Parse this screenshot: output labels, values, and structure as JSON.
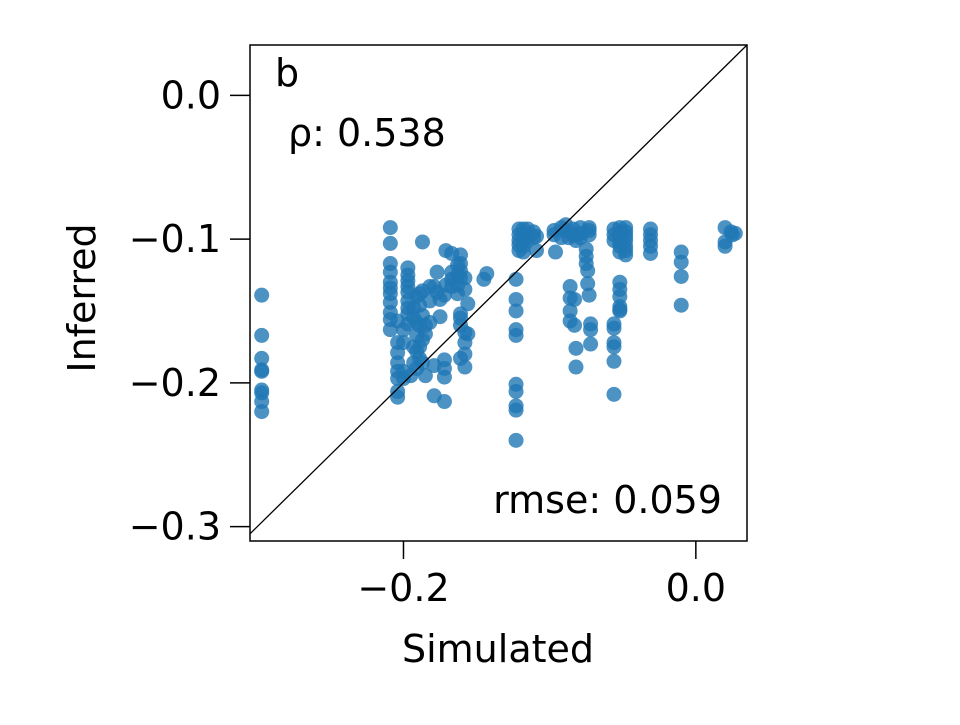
{
  "chart_data": {
    "type": "scatter",
    "panel_label": "b",
    "xlabel": "Simulated",
    "ylabel": "Inferred",
    "xlim": [
      -0.305,
      0.035
    ],
    "ylim": [
      -0.31,
      0.035
    ],
    "xticks": [
      -0.2,
      0.0
    ],
    "xtick_labels": [
      "−0.2",
      "0.0"
    ],
    "yticks": [
      0.0,
      -0.1,
      -0.2,
      -0.3
    ],
    "ytick_labels": [
      "0.0",
      "−0.1",
      "−0.2",
      "−0.3"
    ],
    "grid": false,
    "legend": "none",
    "identity_line": true,
    "point_color": "#1f77b4",
    "annotations": {
      "rho": "ρ: 0.538",
      "rmse": "rmse: 0.059"
    },
    "series": [
      {
        "points": [
          [
            -0.297,
            -0.139
          ],
          [
            -0.297,
            -0.167
          ],
          [
            -0.297,
            -0.183
          ],
          [
            -0.297,
            -0.191
          ],
          [
            -0.297,
            -0.192
          ],
          [
            -0.297,
            -0.205
          ],
          [
            -0.297,
            -0.207
          ],
          [
            -0.297,
            -0.213
          ],
          [
            -0.297,
            -0.22
          ],
          [
            -0.209,
            -0.092
          ],
          [
            -0.209,
            -0.103
          ],
          [
            -0.209,
            -0.117
          ],
          [
            -0.209,
            -0.123
          ],
          [
            -0.209,
            -0.13
          ],
          [
            -0.209,
            -0.134
          ],
          [
            -0.209,
            -0.138
          ],
          [
            -0.209,
            -0.144
          ],
          [
            -0.209,
            -0.151
          ],
          [
            -0.209,
            -0.156
          ],
          [
            -0.209,
            -0.163
          ],
          [
            -0.204,
            -0.157
          ],
          [
            -0.204,
            -0.172
          ],
          [
            -0.204,
            -0.179
          ],
          [
            -0.204,
            -0.186
          ],
          [
            -0.204,
            -0.192
          ],
          [
            -0.204,
            -0.197
          ],
          [
            -0.204,
            -0.206
          ],
          [
            -0.204,
            -0.21
          ],
          [
            -0.2,
            -0.163
          ],
          [
            -0.2,
            -0.172
          ],
          [
            -0.2,
            -0.192
          ],
          [
            -0.2,
            -0.197
          ],
          [
            -0.197,
            -0.12
          ],
          [
            -0.197,
            -0.125
          ],
          [
            -0.197,
            -0.129
          ],
          [
            -0.197,
            -0.133
          ],
          [
            -0.197,
            -0.137
          ],
          [
            -0.197,
            -0.143
          ],
          [
            -0.197,
            -0.148
          ],
          [
            -0.197,
            -0.152
          ],
          [
            -0.197,
            -0.159
          ],
          [
            -0.195,
            -0.195
          ],
          [
            -0.193,
            -0.148
          ],
          [
            -0.193,
            -0.155
          ],
          [
            -0.193,
            -0.175
          ],
          [
            -0.193,
            -0.186
          ],
          [
            -0.191,
            -0.14
          ],
          [
            -0.191,
            -0.158
          ],
          [
            -0.191,
            -0.167
          ],
          [
            -0.191,
            -0.178
          ],
          [
            -0.191,
            -0.19
          ],
          [
            -0.189,
            -0.138
          ],
          [
            -0.189,
            -0.146
          ],
          [
            -0.189,
            -0.16
          ],
          [
            -0.189,
            -0.175
          ],
          [
            -0.189,
            -0.183
          ],
          [
            -0.187,
            -0.102
          ],
          [
            -0.187,
            -0.136
          ],
          [
            -0.187,
            -0.153
          ],
          [
            -0.187,
            -0.17
          ],
          [
            -0.187,
            -0.186
          ],
          [
            -0.185,
            -0.16
          ],
          [
            -0.185,
            -0.166
          ],
          [
            -0.185,
            -0.195
          ],
          [
            -0.182,
            -0.133
          ],
          [
            -0.182,
            -0.143
          ],
          [
            -0.182,
            -0.158
          ],
          [
            -0.179,
            -0.133
          ],
          [
            -0.179,
            -0.188
          ],
          [
            -0.179,
            -0.209
          ],
          [
            -0.177,
            -0.123
          ],
          [
            -0.177,
            -0.137
          ],
          [
            -0.175,
            -0.142
          ],
          [
            -0.175,
            -0.154
          ],
          [
            -0.172,
            -0.139
          ],
          [
            -0.172,
            -0.184
          ],
          [
            -0.172,
            -0.19
          ],
          [
            -0.172,
            -0.196
          ],
          [
            -0.172,
            -0.213
          ],
          [
            -0.171,
            -0.108
          ],
          [
            -0.171,
            -0.132
          ],
          [
            -0.167,
            -0.11
          ],
          [
            -0.167,
            -0.123
          ],
          [
            -0.167,
            -0.128
          ],
          [
            -0.167,
            -0.133
          ],
          [
            -0.163,
            -0.118
          ],
          [
            -0.163,
            -0.125
          ],
          [
            -0.163,
            -0.132
          ],
          [
            -0.163,
            -0.138
          ],
          [
            -0.161,
            -0.111
          ],
          [
            -0.161,
            -0.117
          ],
          [
            -0.161,
            -0.122
          ],
          [
            -0.161,
            -0.127
          ],
          [
            -0.161,
            -0.152
          ],
          [
            -0.161,
            -0.155
          ],
          [
            -0.161,
            -0.16
          ],
          [
            -0.161,
            -0.183
          ],
          [
            -0.158,
            -0.127
          ],
          [
            -0.158,
            -0.135
          ],
          [
            -0.158,
            -0.165
          ],
          [
            -0.158,
            -0.172
          ],
          [
            -0.158,
            -0.18
          ],
          [
            -0.158,
            -0.189
          ],
          [
            -0.156,
            -0.145
          ],
          [
            -0.156,
            -0.166
          ],
          [
            -0.145,
            -0.128
          ],
          [
            -0.143,
            -0.124
          ],
          [
            -0.123,
            -0.128
          ],
          [
            -0.123,
            -0.142
          ],
          [
            -0.123,
            -0.15
          ],
          [
            -0.123,
            -0.163
          ],
          [
            -0.123,
            -0.167
          ],
          [
            -0.123,
            -0.201
          ],
          [
            -0.123,
            -0.206
          ],
          [
            -0.123,
            -0.216
          ],
          [
            -0.123,
            -0.219
          ],
          [
            -0.123,
            -0.24
          ],
          [
            -0.121,
            -0.093
          ],
          [
            -0.121,
            -0.097
          ],
          [
            -0.121,
            -0.101
          ],
          [
            -0.121,
            -0.104
          ],
          [
            -0.121,
            -0.108
          ],
          [
            -0.118,
            -0.093
          ],
          [
            -0.118,
            -0.096
          ],
          [
            -0.118,
            -0.101
          ],
          [
            -0.118,
            -0.105
          ],
          [
            -0.118,
            -0.109
          ],
          [
            -0.115,
            -0.093
          ],
          [
            -0.115,
            -0.097
          ],
          [
            -0.115,
            -0.101
          ],
          [
            -0.111,
            -0.095
          ],
          [
            -0.111,
            -0.099
          ],
          [
            -0.109,
            -0.098
          ],
          [
            -0.109,
            -0.108
          ],
          [
            -0.097,
            -0.094
          ],
          [
            -0.097,
            -0.097
          ],
          [
            -0.096,
            -0.109
          ],
          [
            -0.092,
            -0.092
          ],
          [
            -0.092,
            -0.099
          ],
          [
            -0.089,
            -0.09
          ],
          [
            -0.089,
            -0.094
          ],
          [
            -0.087,
            -0.099
          ],
          [
            -0.086,
            -0.133
          ],
          [
            -0.086,
            -0.141
          ],
          [
            -0.086,
            -0.15
          ],
          [
            -0.086,
            -0.157
          ],
          [
            -0.084,
            -0.093
          ],
          [
            -0.084,
            -0.097
          ],
          [
            -0.083,
            -0.142
          ],
          [
            -0.083,
            -0.16
          ],
          [
            -0.082,
            -0.097
          ],
          [
            -0.082,
            -0.101
          ],
          [
            -0.082,
            -0.176
          ],
          [
            -0.082,
            -0.189
          ],
          [
            -0.079,
            -0.092
          ],
          [
            -0.079,
            -0.096
          ],
          [
            -0.079,
            -0.099
          ],
          [
            -0.075,
            -0.107
          ],
          [
            -0.075,
            -0.112
          ],
          [
            -0.075,
            -0.117
          ],
          [
            -0.074,
            -0.122
          ],
          [
            -0.074,
            -0.131
          ],
          [
            -0.073,
            -0.092
          ],
          [
            -0.073,
            -0.094
          ],
          [
            -0.073,
            -0.097
          ],
          [
            -0.073,
            -0.139
          ],
          [
            -0.072,
            -0.159
          ],
          [
            -0.072,
            -0.163
          ],
          [
            -0.072,
            -0.173
          ],
          [
            -0.056,
            -0.093
          ],
          [
            -0.056,
            -0.097
          ],
          [
            -0.056,
            -0.101
          ],
          [
            -0.056,
            -0.159
          ],
          [
            -0.056,
            -0.162
          ],
          [
            -0.056,
            -0.172
          ],
          [
            -0.056,
            -0.175
          ],
          [
            -0.056,
            -0.185
          ],
          [
            -0.056,
            -0.208
          ],
          [
            -0.052,
            -0.092
          ],
          [
            -0.052,
            -0.095
          ],
          [
            -0.052,
            -0.098
          ],
          [
            -0.052,
            -0.102
          ],
          [
            -0.052,
            -0.105
          ],
          [
            -0.052,
            -0.109
          ],
          [
            -0.052,
            -0.13
          ],
          [
            -0.052,
            -0.135
          ],
          [
            -0.052,
            -0.14
          ],
          [
            -0.052,
            -0.147
          ],
          [
            -0.052,
            -0.149
          ],
          [
            -0.052,
            -0.15
          ],
          [
            -0.048,
            -0.092
          ],
          [
            -0.048,
            -0.095
          ],
          [
            -0.048,
            -0.098
          ],
          [
            -0.048,
            -0.101
          ],
          [
            -0.048,
            -0.105
          ],
          [
            -0.048,
            -0.108
          ],
          [
            -0.048,
            -0.111
          ],
          [
            -0.031,
            -0.093
          ],
          [
            -0.031,
            -0.097
          ],
          [
            -0.031,
            -0.101
          ],
          [
            -0.031,
            -0.105
          ],
          [
            -0.031,
            -0.11
          ],
          [
            -0.01,
            -0.109
          ],
          [
            -0.01,
            -0.116
          ],
          [
            -0.01,
            -0.126
          ],
          [
            -0.01,
            -0.146
          ],
          [
            0.02,
            -0.092
          ],
          [
            0.02,
            -0.102
          ],
          [
            0.02,
            -0.105
          ],
          [
            0.024,
            -0.095
          ],
          [
            0.025,
            -0.097
          ],
          [
            0.027,
            -0.096
          ]
        ]
      }
    ]
  }
}
